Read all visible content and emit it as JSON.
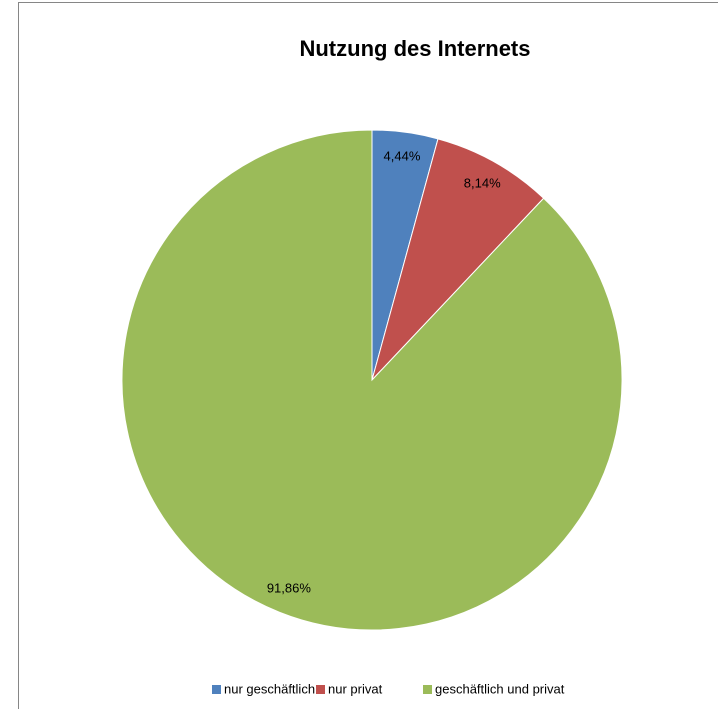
{
  "chart_data": {
    "type": "pie",
    "title": "Nutzung des Internets",
    "categories": [
      "nur geschäftlich",
      "nur privat",
      "geschäftlich und privat"
    ],
    "values": [
      4.44,
      8.14,
      91.86
    ],
    "value_labels": [
      "4,44%",
      "8,14%",
      "91,86%"
    ],
    "colors": [
      "#4f81bd",
      "#c0504d",
      "#9bbb59"
    ],
    "legend": "bottom"
  }
}
